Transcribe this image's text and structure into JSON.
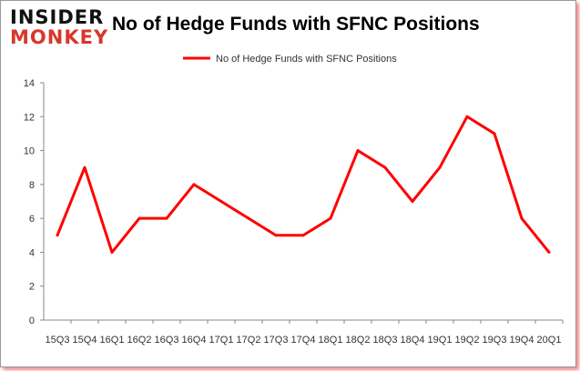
{
  "logo": {
    "line1": "INSIDER",
    "line2": "MONKEY"
  },
  "chart_data": {
    "type": "line",
    "title": "No of Hedge Funds with SFNC Positions",
    "categories": [
      "15Q3",
      "15Q4",
      "16Q1",
      "16Q2",
      "16Q3",
      "16Q4",
      "17Q1",
      "17Q2",
      "17Q3",
      "17Q4",
      "18Q1",
      "18Q2",
      "18Q3",
      "18Q4",
      "19Q1",
      "19Q2",
      "19Q3",
      "19Q4",
      "20Q1"
    ],
    "series": [
      {
        "name": "No of Hedge Funds with SFNC Positions",
        "color": "#ff0000",
        "values": [
          5,
          9,
          4,
          6,
          6,
          8,
          7,
          6,
          5,
          5,
          6,
          10,
          9,
          7,
          9,
          12,
          11,
          6,
          4
        ]
      }
    ],
    "ylim": [
      0,
      14
    ],
    "yticks": [
      0,
      2,
      4,
      6,
      8,
      10,
      12,
      14
    ],
    "xlabel": "",
    "ylabel": "",
    "legend": "top-center",
    "grid": false
  }
}
